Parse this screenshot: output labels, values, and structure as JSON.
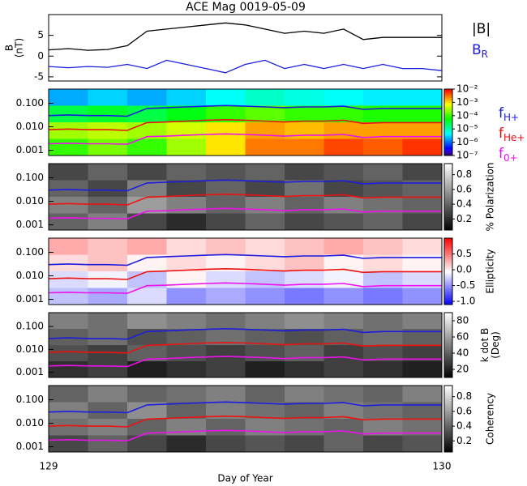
{
  "chart_data": [
    {
      "type": "line",
      "title": "ACE Mag 0019-05-09",
      "ylabel": [
        "B",
        "(nT)"
      ],
      "xlim": [
        129,
        130
      ],
      "ylim": [
        -6,
        10
      ],
      "yticks": [
        5,
        0,
        -5
      ],
      "x": [
        129,
        129.05,
        129.1,
        129.15,
        129.2,
        129.25,
        129.3,
        129.35,
        129.4,
        129.45,
        129.5,
        129.55,
        129.6,
        129.65,
        129.7,
        129.75,
        129.8,
        129.85,
        129.9,
        129.95,
        130
      ],
      "series": [
        {
          "name": "|B|",
          "color": "#000000",
          "values": [
            1.5,
            1.8,
            1.4,
            1.6,
            2.5,
            6,
            6.5,
            7,
            7.5,
            8,
            7.5,
            6.5,
            5.5,
            6,
            5.5,
            6.5,
            4,
            4.5,
            4.5,
            4.5,
            4.5
          ]
        },
        {
          "name": "B",
          "sub": "R",
          "color": "#1c1ce0",
          "values": [
            -2.5,
            -2.8,
            -2.5,
            -2.7,
            -2,
            -3,
            -1,
            -2,
            -3,
            -4,
            -2,
            -1,
            -3,
            -2,
            -3,
            -2,
            -3,
            -2,
            -3,
            -3,
            -3.5
          ]
        }
      ]
    },
    {
      "type": "overlay",
      "x": [
        129,
        129.05,
        129.1,
        129.15,
        129.2,
        129.25,
        129.3,
        129.35,
        129.4,
        129.45,
        129.5,
        129.55,
        129.6,
        129.65,
        129.7,
        129.75,
        129.8,
        129.85,
        129.9,
        129.95,
        130
      ],
      "series": [
        {
          "name": "f",
          "sub": "H+",
          "color": "#1c1ce0",
          "values": [
            0.03,
            0.032,
            0.03,
            0.03,
            0.028,
            0.06,
            0.065,
            0.07,
            0.075,
            0.08,
            0.075,
            0.07,
            0.065,
            0.07,
            0.07,
            0.075,
            0.055,
            0.06,
            0.06,
            0.06,
            0.06
          ]
        },
        {
          "name": "f",
          "sub": "He+",
          "color": "#ee1111",
          "values": [
            0.0075,
            0.008,
            0.0075,
            0.0075,
            0.007,
            0.015,
            0.016,
            0.0175,
            0.019,
            0.02,
            0.019,
            0.0175,
            0.016,
            0.0175,
            0.0175,
            0.019,
            0.014,
            0.015,
            0.015,
            0.015,
            0.015
          ]
        },
        {
          "name": "f",
          "sub": "0+",
          "color": "#ee11ee",
          "values": [
            0.0019,
            0.002,
            0.0019,
            0.0019,
            0.0018,
            0.0038,
            0.004,
            0.0044,
            0.0047,
            0.005,
            0.0047,
            0.0044,
            0.004,
            0.0044,
            0.0044,
            0.0047,
            0.0035,
            0.0038,
            0.0038,
            0.0038,
            0.0038
          ]
        }
      ]
    },
    {
      "type": "heatmap",
      "colormap": "rainbow",
      "xlim": [
        129,
        130
      ],
      "ylim": [
        0.0006,
        0.4
      ],
      "ylog": true,
      "yticks": [
        {
          "value": 0.1,
          "label": "0.100"
        },
        {
          "value": 0.01,
          "label": "0.010"
        },
        {
          "value": 0.001,
          "label": "0.001"
        }
      ],
      "zlim": [
        1e-07,
        0.01
      ],
      "zlog": true,
      "zticks": [
        {
          "value": 0.01,
          "label": "10⁻²"
        },
        {
          "value": 0.001,
          "label": "10⁻³"
        },
        {
          "value": 0.0001,
          "label": "10⁻⁴"
        },
        {
          "value": 1e-05,
          "label": "10⁻⁵"
        },
        {
          "value": 1e-06,
          "label": "10⁻⁶"
        },
        {
          "value": 1e-07,
          "label": "10⁻⁷"
        }
      ],
      "z": [
        [
          2e-06,
          3e-06,
          2e-06,
          3e-06,
          5e-06,
          8e-06,
          6e-06,
          5e-06,
          4e-06,
          4e-06
        ],
        [
          3e-05,
          4e-05,
          3e-05,
          5e-05,
          0.0001,
          0.00015,
          0.0001,
          0.0001,
          8e-05,
          8e-05
        ],
        [
          0.0003,
          0.0004,
          0.0003,
          0.0005,
          0.001,
          0.002,
          0.0015,
          0.002,
          0.002,
          0.002
        ],
        [
          0.0001,
          0.0002,
          0.0001,
          0.0003,
          0.001,
          0.003,
          0.003,
          0.005,
          0.004,
          0.006
        ]
      ]
    },
    {
      "type": "heatmap",
      "colormap": "gray",
      "xlim": [
        129,
        130
      ],
      "ylim": [
        0.0006,
        0.4
      ],
      "ylog": true,
      "yticks": [
        {
          "value": 0.1,
          "label": "0.100"
        },
        {
          "value": 0.01,
          "label": "0.010"
        },
        {
          "value": 0.001,
          "label": "0.001"
        }
      ],
      "zlim": [
        0.05,
        0.95
      ],
      "zticks": [
        0.8,
        0.6,
        0.4,
        0.2
      ],
      "colorbar_label": [
        "% Polarization"
      ],
      "z": [
        [
          0.3,
          0.4,
          0.3,
          0.4,
          0.35,
          0.4,
          0.3,
          0.35,
          0.4,
          0.3
        ],
        [
          0.4,
          0.3,
          0.5,
          0.3,
          0.4,
          0.3,
          0.45,
          0.3,
          0.35,
          0.4
        ],
        [
          0.5,
          0.4,
          0.6,
          0.5,
          0.4,
          0.5,
          0.4,
          0.5,
          0.45,
          0.4
        ],
        [
          0.4,
          0.5,
          0.3,
          0.2,
          0.3,
          0.4,
          0.3,
          0.35,
          0.4,
          0.3
        ]
      ]
    },
    {
      "type": "heatmap",
      "colormap": "bwr",
      "xlim": [
        129,
        130
      ],
      "ylim": [
        0.0006,
        0.4
      ],
      "ylog": true,
      "yticks": [
        {
          "value": 0.1,
          "label": "0.100"
        },
        {
          "value": 0.01,
          "label": "0.010"
        },
        {
          "value": 0.001,
          "label": "0.001"
        }
      ],
      "zlim": [
        -1.1,
        1.0
      ],
      "zticks": [
        {
          "value": 0.5,
          "label": "0.5"
        },
        {
          "value": 0,
          "label": "0.0"
        },
        {
          "value": -0.5,
          "label": "-0.5"
        },
        {
          "value": -1,
          "label": "-1.0"
        }
      ],
      "colorbar_label": [
        "Ellipticity"
      ],
      "z": [
        [
          0.3,
          0.2,
          0.3,
          0.1,
          0.2,
          0.1,
          0.2,
          0.3,
          0.2,
          0.1
        ],
        [
          0.1,
          0.2,
          0,
          0.1,
          0,
          0.1,
          0.2,
          0,
          0.1,
          0
        ],
        [
          -0.2,
          -0.1,
          -0.3,
          0,
          -0.2,
          -0.3,
          -0.2,
          -0.1,
          -0.3,
          -0.2
        ],
        [
          -0.3,
          -0.4,
          -0.2,
          -0.5,
          -0.4,
          -0.5,
          -0.6,
          -0.5,
          -0.6,
          -0.5
        ]
      ]
    },
    {
      "type": "heatmap",
      "colormap": "gray",
      "xlim": [
        129,
        130
      ],
      "ylim": [
        0.0006,
        0.4
      ],
      "ylog": true,
      "yticks": [
        {
          "value": 0.1,
          "label": "0.100"
        },
        {
          "value": 0.01,
          "label": "0.010"
        },
        {
          "value": 0.001,
          "label": "0.001"
        }
      ],
      "zlim": [
        10,
        90
      ],
      "zticks": [
        80,
        60,
        40,
        20
      ],
      "colorbar_label": [
        "k dot B",
        "(Deg)"
      ],
      "z": [
        [
          50,
          45,
          55,
          50,
          45,
          50,
          55,
          50,
          45,
          50
        ],
        [
          40,
          45,
          35,
          40,
          45,
          40,
          35,
          40,
          45,
          40
        ],
        [
          35,
          30,
          40,
          35,
          30,
          35,
          40,
          30,
          35,
          30
        ],
        [
          25,
          30,
          20,
          25,
          30,
          20,
          25,
          30,
          25,
          20
        ]
      ]
    },
    {
      "type": "heatmap",
      "colormap": "gray",
      "xlim": [
        129,
        130
      ],
      "ylim": [
        0.0006,
        0.4
      ],
      "ylog": true,
      "yticks": [
        {
          "value": 0.1,
          "label": "0.100"
        },
        {
          "value": 0.01,
          "label": "0.010"
        },
        {
          "value": 0.001,
          "label": "0.001"
        }
      ],
      "zlim": [
        0.05,
        0.95
      ],
      "zticks": [
        0.8,
        0.6,
        0.4,
        0.2
      ],
      "colorbar_label": [
        "Coherency"
      ],
      "xticks": [
        129,
        130
      ],
      "xlabel": "Day of Year",
      "z": [
        [
          0.4,
          0.5,
          0.4,
          0.45,
          0.5,
          0.4,
          0.5,
          0.45,
          0.4,
          0.5
        ],
        [
          0.5,
          0.4,
          0.55,
          0.4,
          0.5,
          0.45,
          0.4,
          0.5,
          0.45,
          0.4
        ],
        [
          0.45,
          0.5,
          0.4,
          0.5,
          0.4,
          0.5,
          0.45,
          0.4,
          0.5,
          0.45
        ],
        [
          0.3,
          0.4,
          0.3,
          0.2,
          0.3,
          0.35,
          0.3,
          0.4,
          0.3,
          0.35
        ]
      ]
    }
  ]
}
